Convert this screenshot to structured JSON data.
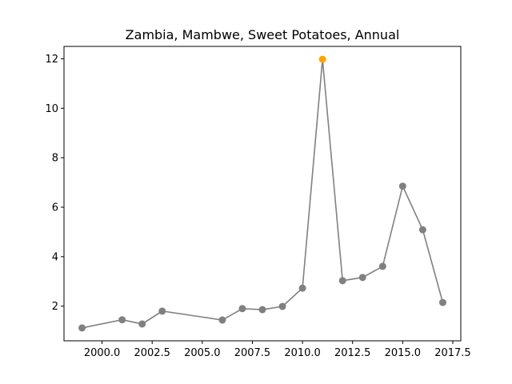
{
  "chart_data": {
    "type": "line",
    "title": "Zambia, Mambwe, Sweet Potatoes, Annual",
    "xlabel": "",
    "ylabel": "",
    "xlim": [
      1998.1,
      2017.9
    ],
    "ylim": [
      0.6,
      12.5
    ],
    "x_ticks": [
      2000.0,
      2002.5,
      2005.0,
      2007.5,
      2010.0,
      2012.5,
      2015.0,
      2017.5
    ],
    "x_tick_labels": [
      "2000.0",
      "2002.5",
      "2005.0",
      "2007.5",
      "2010.0",
      "2012.5",
      "2015.0",
      "2017.5"
    ],
    "y_ticks": [
      2,
      4,
      6,
      8,
      10,
      12
    ],
    "y_tick_labels": [
      "2",
      "4",
      "6",
      "8",
      "10",
      "12"
    ],
    "grid": false,
    "legend": "none",
    "series": [
      {
        "x": [
          1999,
          2001,
          2002,
          2003,
          2006,
          2007,
          2008,
          2009,
          2010,
          2011,
          2012,
          2013,
          2014,
          2015,
          2016,
          2017
        ],
        "values": [
          1.12,
          1.45,
          1.28,
          1.8,
          1.44,
          1.9,
          1.86,
          1.99,
          2.73,
          11.98,
          3.03,
          3.16,
          3.61,
          6.85,
          5.09,
          2.15
        ],
        "color": "#808080",
        "highlight_index": 9,
        "highlight_color": "#ffa500"
      }
    ]
  }
}
